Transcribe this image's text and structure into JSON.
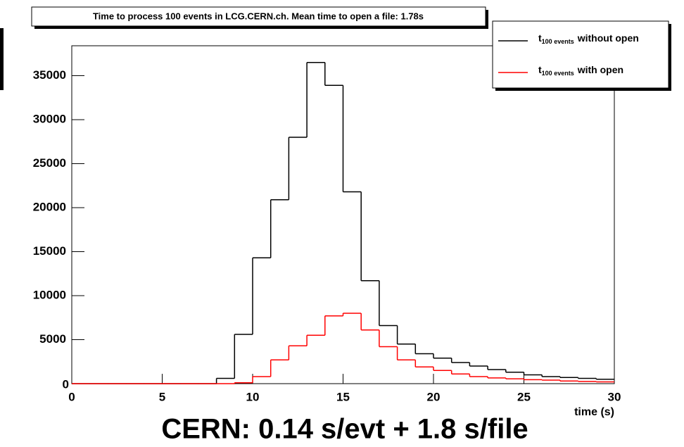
{
  "chart_data": {
    "type": "histogram",
    "title": "Time to process 100 events in LCG.CERN.ch. Mean time to open a file: 1.78s",
    "x_label": "time (s)",
    "caption": "CERN: 0.14 s/evt + 1.8 s/file",
    "bins": [
      0,
      1,
      2,
      3,
      4,
      5,
      6,
      7,
      8,
      9,
      10,
      11,
      12,
      13,
      14,
      15,
      16,
      17,
      18,
      19,
      20,
      21,
      22,
      23,
      24,
      25,
      26,
      27,
      28,
      29,
      30
    ],
    "legend_symbol": "t",
    "legend_subscript": "100 events",
    "series": [
      {
        "name": "without open",
        "color": "#000000",
        "values": [
          0,
          0,
          0,
          0,
          0,
          0,
          0,
          0,
          600,
          5600,
          14300,
          20900,
          28000,
          36500,
          33900,
          21800,
          11700,
          6600,
          4500,
          3400,
          2900,
          2400,
          2000,
          1600,
          1300,
          1000,
          800,
          700,
          600,
          500
        ]
      },
      {
        "name": "with open",
        "color": "#ff0000",
        "values": [
          0,
          0,
          0,
          0,
          0,
          0,
          0,
          0,
          0,
          100,
          800,
          2700,
          4300,
          5500,
          7700,
          8000,
          6100,
          4200,
          2700,
          1900,
          1500,
          1100,
          800,
          650,
          550,
          450,
          400,
          300,
          250,
          200
        ]
      }
    ],
    "xlim": [
      0,
      30
    ],
    "ylim": [
      0,
      38400
    ],
    "xticks": [
      0,
      5,
      10,
      15,
      20,
      25,
      30
    ],
    "yticks": [
      0,
      5000,
      10000,
      15000,
      20000,
      25000,
      30000,
      35000
    ],
    "legend": "top-right"
  }
}
